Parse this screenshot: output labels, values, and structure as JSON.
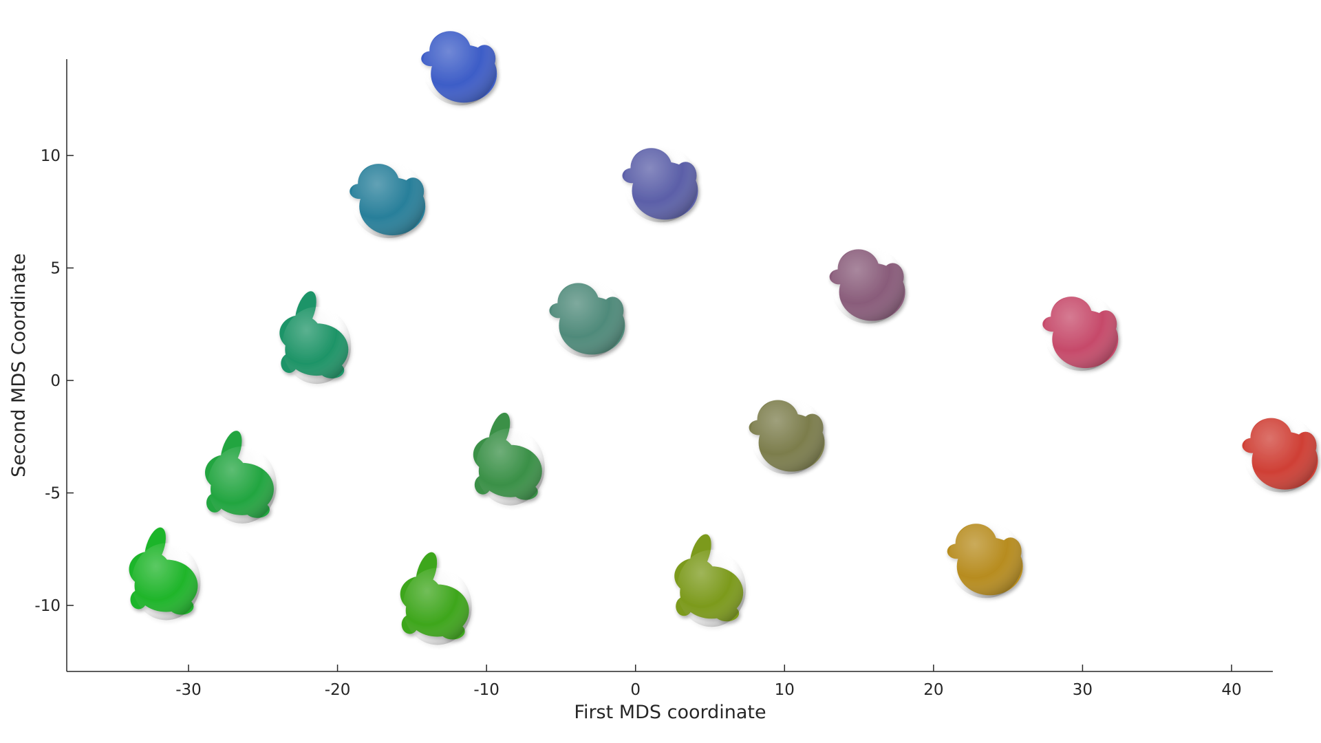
{
  "chart_data": {
    "type": "scatter",
    "title": "",
    "xlabel": "First MDS coordinate",
    "ylabel": "Second MDS Coordinate",
    "xlim": [
      -38.2,
      42.8
    ],
    "ylim": [
      -13,
      14.3
    ],
    "xticks": [
      -30,
      -20,
      -10,
      0,
      10,
      20,
      30,
      40
    ],
    "yticks": [
      -10,
      -5,
      0,
      5,
      10
    ],
    "xtick_labels": [
      "-30",
      "-20",
      "-10",
      "0",
      "10",
      "20",
      "30",
      "40"
    ],
    "ytick_labels": [
      "-10",
      "-5",
      "0",
      "5",
      "10"
    ],
    "grid": false,
    "marker": "3D shape (bunny-to-duck morph) rendered at each point",
    "points": [
      {
        "x": -31.5,
        "y": -8.7,
        "color": "#1fb52a",
        "shape": "bunny"
      },
      {
        "x": -26.4,
        "y": -4.4,
        "color": "#22a540",
        "shape": "bunny"
      },
      {
        "x": -21.4,
        "y": 1.8,
        "color": "#1e9467",
        "shape": "bunny"
      },
      {
        "x": -16.6,
        "y": 8.1,
        "color": "#287f9a",
        "shape": "duck"
      },
      {
        "x": -11.8,
        "y": 14.0,
        "color": "#3d5dc7",
        "shape": "duck"
      },
      {
        "x": -13.3,
        "y": -9.8,
        "color": "#3ea61c",
        "shape": "bunny"
      },
      {
        "x": -8.4,
        "y": -3.6,
        "color": "#3a9047",
        "shape": "bunny"
      },
      {
        "x": -3.2,
        "y": 2.8,
        "color": "#4f8a7a",
        "shape": "duck"
      },
      {
        "x": 1.7,
        "y": 8.8,
        "color": "#5b5fa8",
        "shape": "duck"
      },
      {
        "x": 5.1,
        "y": -9.0,
        "color": "#7c9a1c",
        "shape": "bunny"
      },
      {
        "x": 10.2,
        "y": -2.4,
        "color": "#7c7d4c",
        "shape": "duck"
      },
      {
        "x": 15.6,
        "y": 4.3,
        "color": "#895c7a",
        "shape": "duck"
      },
      {
        "x": 23.5,
        "y": -7.9,
        "color": "#b78c1f",
        "shape": "duck"
      },
      {
        "x": 29.9,
        "y": 2.2,
        "color": "#c64a6a",
        "shape": "duck"
      },
      {
        "x": 43.3,
        "y": -3.2,
        "color": "#cf3f35",
        "shape": "duck"
      }
    ]
  }
}
